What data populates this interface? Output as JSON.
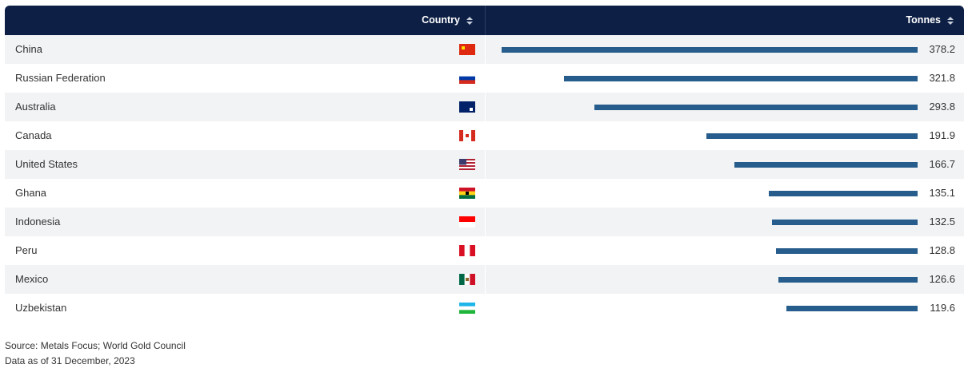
{
  "table": {
    "headers": [
      "Country",
      "Tonnes"
    ],
    "rows": [
      [
        "China",
        378.2
      ],
      [
        "Russian Federation",
        321.8
      ],
      [
        "Australia",
        293.8
      ],
      [
        "Canada",
        191.9
      ],
      [
        "United States",
        166.7
      ],
      [
        "Ghana",
        135.1
      ],
      [
        "Indonesia",
        132.5
      ],
      [
        "Peru",
        128.8
      ],
      [
        "Mexico",
        126.6
      ],
      [
        "Uzbekistan",
        119.6
      ]
    ]
  },
  "footer": {
    "source": "Source: Metals Focus; World Gold Council",
    "date": "Data as of 31 December, 2023"
  }
}
